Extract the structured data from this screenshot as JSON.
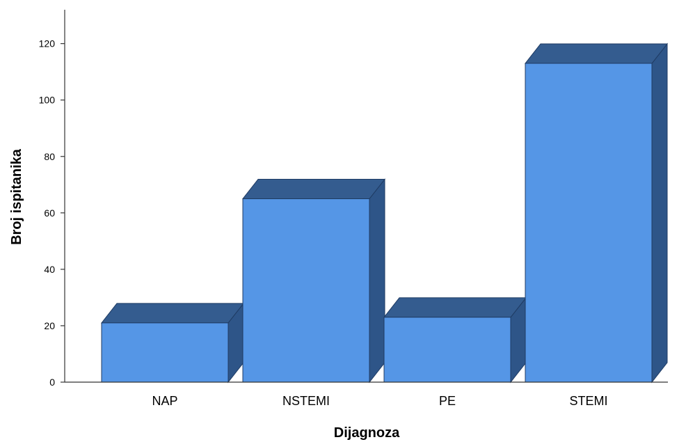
{
  "chart_data": {
    "type": "bar",
    "categories": [
      "NAP",
      "NSTEMI",
      "PE",
      "STEMI"
    ],
    "values": [
      21,
      65,
      23,
      113
    ],
    "xlabel": "Dijagnoza",
    "ylabel": "Broj ispitanika",
    "ylim": [
      0,
      132
    ],
    "yticks": [
      0,
      20,
      40,
      60,
      80,
      100,
      120
    ],
    "grid": false,
    "bar_style": "3d",
    "colors": {
      "front": "#5596E6",
      "top": "#345C8F",
      "side": "#2E5588",
      "outline": "#1F3B63",
      "axis": "#333333"
    }
  }
}
